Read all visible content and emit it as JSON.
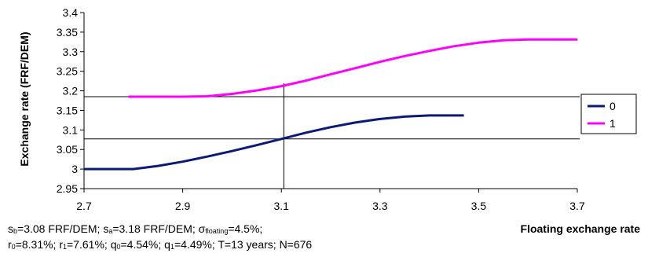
{
  "chart_data": {
    "type": "line",
    "xlabel": "Floating exchange rate",
    "ylabel": "Exchange rate (FRF/DEM)",
    "xlim": [
      2.7,
      3.7
    ],
    "ylim": [
      2.95,
      3.4
    ],
    "xticks": [
      "2.7",
      "2.9",
      "3.1",
      "3.3",
      "3.5",
      "3.7"
    ],
    "yticks": [
      "2.95",
      "3",
      "3.05",
      "3.1",
      "3.15",
      "3.2",
      "3.25",
      "3.3",
      "3.35",
      "3.4"
    ],
    "legend_position": "right",
    "series": [
      {
        "name": "0",
        "color": "#0a1a78",
        "x": [
          2.7,
          2.75,
          2.8,
          2.85,
          2.9,
          2.95,
          3.0,
          3.05,
          3.1,
          3.15,
          3.2,
          3.25,
          3.3,
          3.35,
          3.4,
          3.47
        ],
        "y": [
          3.0,
          3.0,
          3.0,
          3.008,
          3.019,
          3.032,
          3.046,
          3.061,
          3.077,
          3.093,
          3.107,
          3.119,
          3.128,
          3.134,
          3.137,
          3.137
        ]
      },
      {
        "name": "1",
        "color": "#ff00ff",
        "x": [
          2.79,
          2.85,
          2.9,
          2.95,
          3.0,
          3.05,
          3.1,
          3.15,
          3.2,
          3.25,
          3.3,
          3.35,
          3.4,
          3.45,
          3.5,
          3.55,
          3.6,
          3.65,
          3.7
        ],
        "y": [
          3.185,
          3.185,
          3.185,
          3.186,
          3.192,
          3.201,
          3.212,
          3.226,
          3.242,
          3.258,
          3.274,
          3.289,
          3.302,
          3.314,
          3.323,
          3.329,
          3.331,
          3.331,
          3.331
        ]
      }
    ],
    "reference_lines": {
      "horizontal": [
        3.077,
        3.185
      ],
      "vertical": [
        3.105
      ]
    }
  },
  "annotations": {
    "line1": {
      "s_b": "s",
      "s_b_sub": "b",
      "s_b_rest": "=3.08 FRF/DEM; ",
      "s_a": "s",
      "s_a_sub": "a",
      "s_a_rest": "=3.18 FRF/DEM; ",
      "sigma": "σ",
      "sigma_sub": "floating",
      "sigma_rest": "=4.5%;"
    },
    "line2": {
      "r0": "r",
      "r0_sub": "0",
      "r0_rest": "=8.31%;  ",
      "r1": "r",
      "r1_sub": "1",
      "r1_rest": "=7.61%; ",
      "q0": "q",
      "q0_sub": "0",
      "q0_rest": "=4.54%; ",
      "q1": "q",
      "q1_sub": "1",
      "q1_rest": "=4.49%; T=13 years; N=676"
    }
  }
}
